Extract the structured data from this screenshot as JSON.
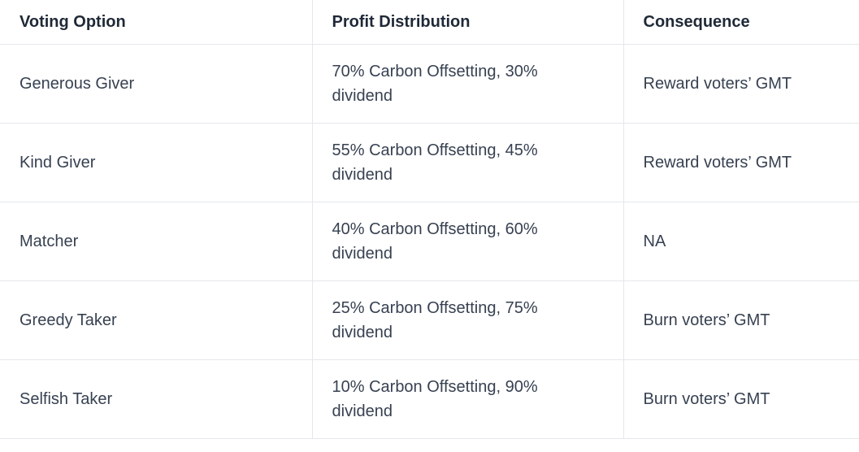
{
  "table": {
    "header": [
      "Voting Option",
      "Profit Distribution",
      "Consequence"
    ],
    "rows": [
      [
        "Generous Giver",
        "70% Carbon Offsetting, 30% dividend",
        "Reward voters’ GMT"
      ],
      [
        "Kind Giver",
        "55% Carbon Offsetting, 45% dividend",
        "Reward voters’ GMT"
      ],
      [
        "Matcher",
        "40% Carbon Offsetting, 60% dividend",
        "NA"
      ],
      [
        "Greedy Taker",
        "25% Carbon Offsetting, 75% dividend",
        "Burn voters’ GMT"
      ],
      [
        "Selfish Taker",
        "10% Carbon Offsetting, 90% dividend",
        "Burn voters’ GMT"
      ]
    ]
  }
}
